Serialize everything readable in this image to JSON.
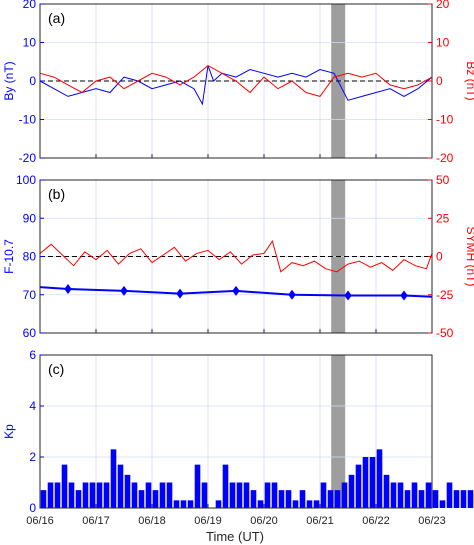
{
  "colors": {
    "left_axis": "#0000ff",
    "right_axis": "#ff0000",
    "shade": "#9e9e9e",
    "grid": "#d6dcf2",
    "frame": "#262626"
  },
  "xlabel": "Time (UT)",
  "x_tick_labels": [
    "06/16",
    "06/17",
    "06/18",
    "06/19",
    "06/20",
    "06/21",
    "06/22",
    "06/23"
  ],
  "chart_data": [
    {
      "panel_label": "(a)",
      "type": "line",
      "x_range_days": [
        0,
        7
      ],
      "shaded_interval_days": [
        5.2,
        5.45
      ],
      "left_axis": {
        "label": "By (nT)",
        "range": [
          -20,
          20
        ],
        "ticks": [
          -20,
          -10,
          0,
          10,
          20
        ]
      },
      "right_axis": {
        "label": "Bz (nT)",
        "range": [
          -20,
          20
        ],
        "ticks": [
          -20,
          -10,
          0,
          10,
          20
        ]
      },
      "reference_line": {
        "axis": "left",
        "y": 0,
        "style": "dashed"
      },
      "series": [
        {
          "axis": "left",
          "color": "blue",
          "x": [
            0,
            0.25,
            0.5,
            0.75,
            1,
            1.25,
            1.5,
            1.75,
            2,
            2.25,
            2.5,
            2.75,
            2.9,
            3,
            3.1,
            3.25,
            3.5,
            3.75,
            4,
            4.25,
            4.5,
            4.75,
            5,
            5.25,
            5.5,
            5.75,
            6,
            6.25,
            6.5,
            6.75,
            7
          ],
          "y": [
            0,
            -2,
            -4,
            -3,
            -2,
            -3,
            1,
            0,
            -2,
            -1,
            0,
            -2,
            -6,
            4,
            0,
            2,
            1,
            3,
            2,
            1,
            2,
            1,
            3,
            2,
            -5,
            -4,
            -3,
            -2,
            -4,
            -2,
            1
          ]
        },
        {
          "axis": "right",
          "color": "red",
          "x": [
            0,
            0.25,
            0.5,
            0.75,
            1,
            1.25,
            1.5,
            1.75,
            2,
            2.25,
            2.5,
            2.75,
            3,
            3.25,
            3.5,
            3.75,
            4,
            4.25,
            4.5,
            4.75,
            5,
            5.25,
            5.5,
            5.75,
            6,
            6.25,
            6.5,
            6.75,
            7
          ],
          "y": [
            2,
            1,
            -1,
            -3,
            0,
            1,
            -2,
            0,
            2,
            1,
            -1,
            1,
            4,
            2,
            0,
            -3,
            1,
            -2,
            0,
            -3,
            -4,
            1,
            2,
            1,
            2,
            -1,
            -2,
            -1,
            1
          ]
        }
      ]
    },
    {
      "panel_label": "(b)",
      "type": "line",
      "x_range_days": [
        0,
        7
      ],
      "shaded_interval_days": [
        5.2,
        5.45
      ],
      "left_axis": {
        "label": "F-10.7",
        "range": [
          60,
          100
        ],
        "ticks": [
          60,
          70,
          80,
          90,
          100
        ]
      },
      "right_axis": {
        "label": "SYMH (nT)",
        "range": [
          -50,
          50
        ],
        "ticks": [
          -50,
          -25,
          0,
          25,
          50
        ]
      },
      "reference_line": {
        "axis": "right",
        "y": 0,
        "style": "dashed"
      },
      "series": [
        {
          "axis": "left",
          "color": "blue",
          "marker": "diamond",
          "x": [
            0,
            0.5,
            1.5,
            2.5,
            3.5,
            4.5,
            5.5,
            6.5,
            7
          ],
          "y": [
            72,
            71.5,
            71,
            70.3,
            71,
            70,
            69.8,
            69.8,
            69.5
          ],
          "marker_indices": [
            1,
            2,
            3,
            4,
            5,
            6,
            7
          ]
        },
        {
          "axis": "right",
          "color": "red",
          "x": [
            0,
            0.2,
            0.4,
            0.6,
            0.8,
            1,
            1.2,
            1.4,
            1.6,
            1.8,
            2,
            2.2,
            2.4,
            2.6,
            2.8,
            3,
            3.2,
            3.4,
            3.6,
            3.8,
            4,
            4.15,
            4.3,
            4.5,
            4.7,
            4.9,
            5.1,
            5.3,
            5.5,
            5.7,
            5.9,
            6.1,
            6.3,
            6.5,
            6.7,
            6.9,
            7
          ],
          "y": [
            2,
            8,
            1,
            -6,
            3,
            -2,
            4,
            -5,
            2,
            5,
            -4,
            1,
            6,
            -3,
            2,
            4,
            -2,
            3,
            -5,
            1,
            2,
            10,
            -10,
            -4,
            -6,
            -3,
            -8,
            -10,
            -5,
            -3,
            -7,
            -4,
            -9,
            -2,
            -6,
            -8,
            2
          ]
        }
      ]
    },
    {
      "panel_label": "(c)",
      "type": "bar",
      "x_range_days": [
        0,
        7
      ],
      "shaded_interval_days": [
        5.2,
        5.45
      ],
      "left_axis": {
        "label": "Kp",
        "range": [
          0,
          6
        ],
        "ticks": [
          0,
          2,
          4,
          6
        ]
      },
      "bar_width_days": 0.125,
      "series": [
        {
          "axis": "left",
          "color": "blue",
          "values": [
            0.7,
            1.0,
            1.0,
            1.7,
            1.0,
            0.7,
            1.0,
            1.0,
            1.0,
            1.0,
            2.3,
            1.7,
            1.3,
            1.0,
            0.7,
            1.0,
            0.7,
            1.0,
            1.0,
            0.3,
            0.3,
            0.3,
            1.7,
            1.0,
            0.0,
            0.3,
            1.7,
            1.0,
            1.0,
            1.0,
            0.7,
            0.3,
            1.0,
            1.0,
            0.7,
            0.7,
            0.3,
            0.7,
            0.3,
            0.3,
            1.0,
            0.7,
            0.7,
            1.0,
            1.3,
            1.7,
            2.0,
            2.0,
            2.3,
            1.3,
            1.0,
            1.0,
            0.7,
            1.0,
            0.7,
            1.0,
            0.7,
            0.3,
            1.0,
            0.7,
            0.7,
            0.7,
            0.7,
            0.3,
            0.7,
            0.7,
            0.7,
            0.0,
            0.0,
            0.3,
            0.7,
            0.7,
            0.7,
            0.3,
            0.3,
            0.7,
            0.3,
            0.3,
            1.0
          ]
        }
      ]
    }
  ]
}
